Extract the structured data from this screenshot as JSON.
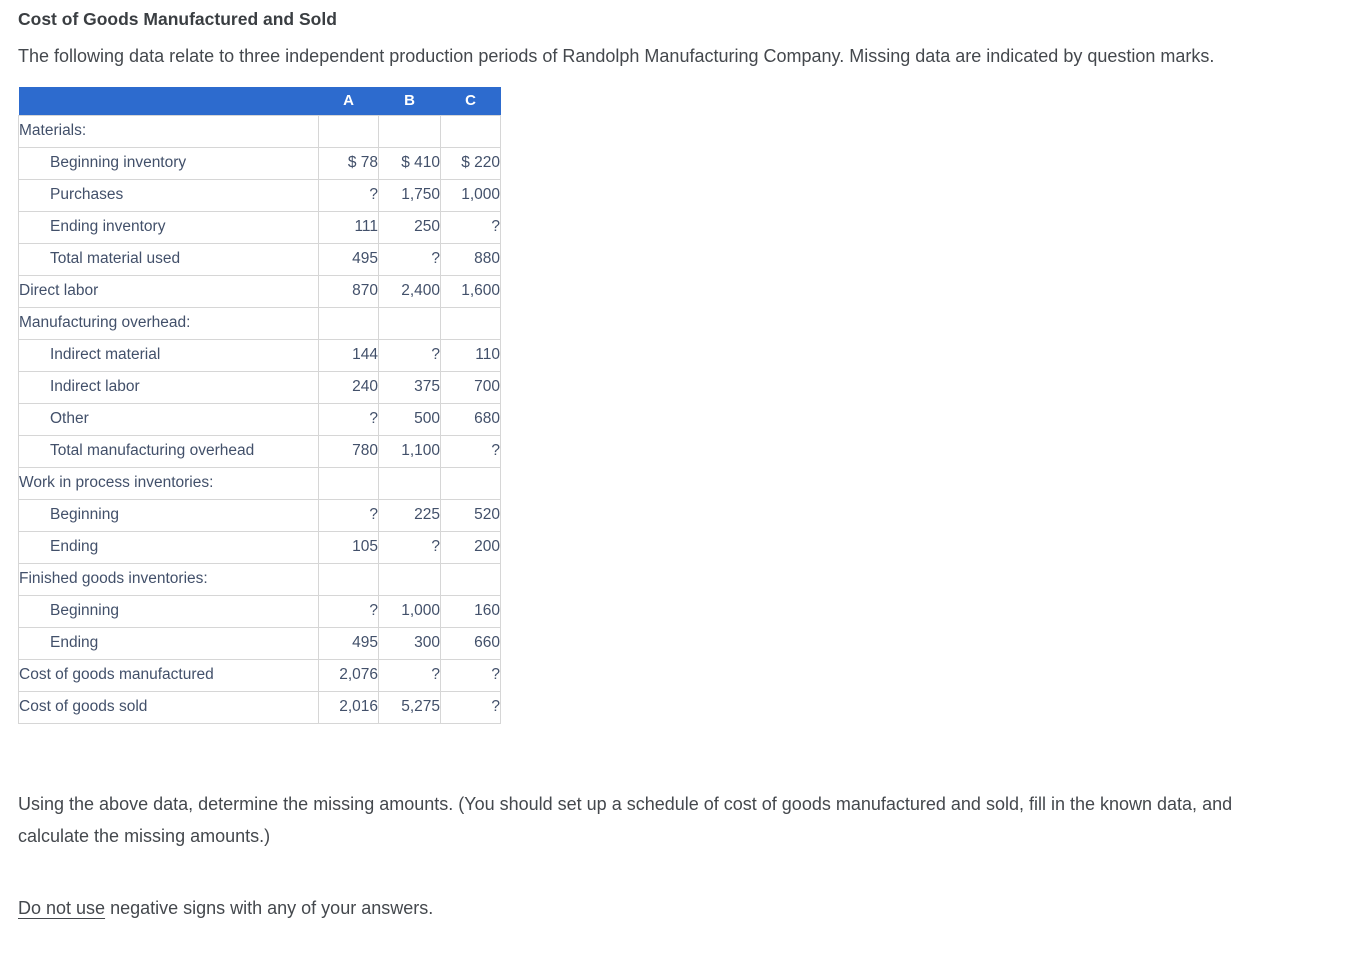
{
  "page": {
    "title": "Cost of Goods Manufactured and Sold",
    "intro": "The following data relate to three independent production periods of Randolph Manufacturing Company. Missing data are indicated by question marks.",
    "instructions": "Using the above data, determine the missing amounts. (You should set up a schedule of cost of goods manufactured and sold, fill in the known data, and calculate the missing amounts.)",
    "note_underlined": "Do not use",
    "note_rest": " negative signs with any of your answers."
  },
  "colors": {
    "header_bg": "#2d6bce",
    "header_text": "#ffffff",
    "table_text": "#42506a",
    "table_border": "#d6d6d6",
    "body_text": "#44484d"
  },
  "table": {
    "columns": [
      "A",
      "B",
      "C"
    ],
    "rows": [
      {
        "label": "Materials:",
        "indent": false,
        "a": "",
        "b": "",
        "c": ""
      },
      {
        "label": "Beginning inventory",
        "indent": true,
        "a": "$ 78",
        "b": "$ 410",
        "c": "$ 220"
      },
      {
        "label": "Purchases",
        "indent": true,
        "a": "?",
        "b": "1,750",
        "c": "1,000"
      },
      {
        "label": "Ending inventory",
        "indent": true,
        "a": "111",
        "b": "250",
        "c": "?"
      },
      {
        "label": "Total material used",
        "indent": true,
        "a": "495",
        "b": "?",
        "c": "880"
      },
      {
        "label": "Direct labor",
        "indent": false,
        "a": "870",
        "b": "2,400",
        "c": "1,600"
      },
      {
        "label": "Manufacturing overhead:",
        "indent": false,
        "a": "",
        "b": "",
        "c": ""
      },
      {
        "label": "Indirect material",
        "indent": true,
        "a": "144",
        "b": "?",
        "c": "110"
      },
      {
        "label": "Indirect labor",
        "indent": true,
        "a": "240",
        "b": "375",
        "c": "700"
      },
      {
        "label": "Other",
        "indent": true,
        "a": "?",
        "b": "500",
        "c": "680"
      },
      {
        "label": "Total manufacturing overhead",
        "indent": true,
        "a": "780",
        "b": "1,100",
        "c": "?"
      },
      {
        "label": "Work in process inventories:",
        "indent": false,
        "a": "",
        "b": "",
        "c": ""
      },
      {
        "label": "Beginning",
        "indent": true,
        "a": "?",
        "b": "225",
        "c": "520"
      },
      {
        "label": "Ending",
        "indent": true,
        "a": "105",
        "b": "?",
        "c": "200"
      },
      {
        "label": "Finished goods inventories:",
        "indent": false,
        "a": "",
        "b": "",
        "c": ""
      },
      {
        "label": "Beginning",
        "indent": true,
        "a": "?",
        "b": "1,000",
        "c": "160"
      },
      {
        "label": "Ending",
        "indent": true,
        "a": "495",
        "b": "300",
        "c": "660"
      },
      {
        "label": "Cost of goods manufactured",
        "indent": false,
        "a": "2,076",
        "b": "?",
        "c": "?"
      },
      {
        "label": "Cost of goods sold",
        "indent": false,
        "a": "2,016",
        "b": "5,275",
        "c": "?"
      }
    ]
  }
}
